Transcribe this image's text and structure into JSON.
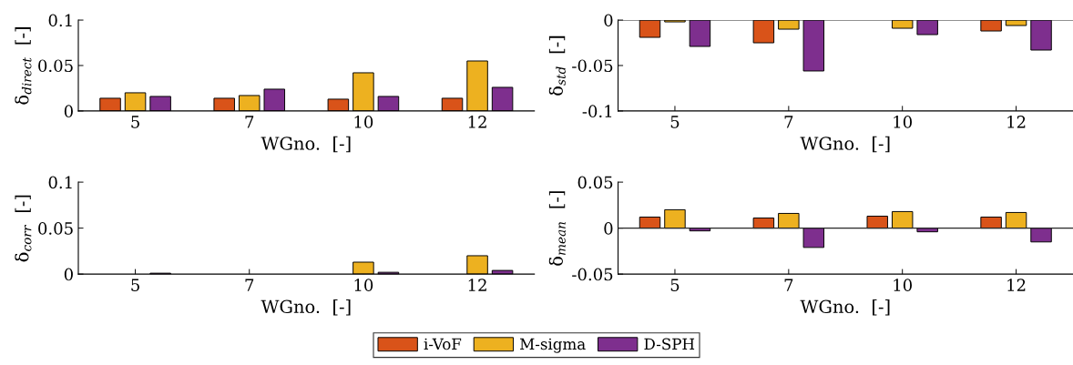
{
  "chart_data": [
    {
      "type": "bar",
      "categories": [
        "5",
        "7",
        "10",
        "12"
      ],
      "xlabel": "WGno.  [-]",
      "ylabel": "δ$_{direct}$  [-]",
      "ylim": [
        0,
        0.1
      ],
      "yticks": [
        0,
        0.05,
        0.1
      ],
      "grid": false,
      "legend": "bottom",
      "series": [
        {
          "name": "i-VoF",
          "color": "#d95319",
          "values": [
            0.014,
            0.014,
            0.013,
            0.014
          ]
        },
        {
          "name": "M-sigma",
          "color": "#edb120",
          "values": [
            0.02,
            0.017,
            0.042,
            0.055
          ]
        },
        {
          "name": "D-SPH",
          "color": "#7e2f8e",
          "values": [
            0.016,
            0.024,
            0.016,
            0.026
          ]
        }
      ]
    },
    {
      "type": "bar",
      "categories": [
        "5",
        "7",
        "10",
        "12"
      ],
      "xlabel": "WGno.  [-]",
      "ylabel": "δ$_{std}$  [-]",
      "ylim": [
        -0.1,
        0
      ],
      "yticks": [
        -0.1,
        -0.05,
        0
      ],
      "grid": false,
      "ref_lines": [
        {
          "axis": "y",
          "value": 0,
          "color": "#262626"
        }
      ],
      "series": [
        {
          "color": "#d95319",
          "values": [
            -0.019,
            -0.025,
            0,
            -0.012
          ]
        },
        {
          "color": "#edb120",
          "values": [
            -0.002,
            -0.01,
            -0.009,
            -0.006
          ]
        },
        {
          "color": "#7e2f8e",
          "values": [
            -0.029,
            -0.056,
            -0.016,
            -0.033
          ]
        }
      ]
    },
    {
      "type": "bar",
      "categories": [
        "5",
        "7",
        "10",
        "12"
      ],
      "xlabel": "WGno.  [-]",
      "ylabel": "δ$_{corr}$  [-]",
      "ylim": [
        0,
        0.1
      ],
      "yticks": [
        0,
        0.05,
        0.1
      ],
      "grid": false,
      "series": [
        {
          "color": "#d95319",
          "values": [
            0,
            0,
            0,
            0
          ]
        },
        {
          "color": "#edb120",
          "values": [
            0,
            0,
            0.013,
            0.02
          ]
        },
        {
          "color": "#7e2f8e",
          "values": [
            0.001,
            0,
            0.002,
            0.004
          ]
        }
      ]
    },
    {
      "type": "bar",
      "categories": [
        "5",
        "7",
        "10",
        "12"
      ],
      "xlabel": "WGno.  [-]",
      "ylabel": "δ$_{mean}$  [-]",
      "ylim": [
        -0.05,
        0.05
      ],
      "yticks": [
        -0.05,
        0,
        0.05
      ],
      "grid": false,
      "ref_lines": [
        {
          "axis": "y",
          "value": 0,
          "color": "#262626"
        }
      ],
      "series": [
        {
          "color": "#d95319",
          "values": [
            0.012,
            0.011,
            0.013,
            0.012
          ]
        },
        {
          "color": "#edb120",
          "values": [
            0.02,
            0.016,
            0.018,
            0.017
          ]
        },
        {
          "color": "#7e2f8e",
          "values": [
            -0.003,
            -0.021,
            -0.004,
            -0.015
          ]
        }
      ]
    }
  ]
}
